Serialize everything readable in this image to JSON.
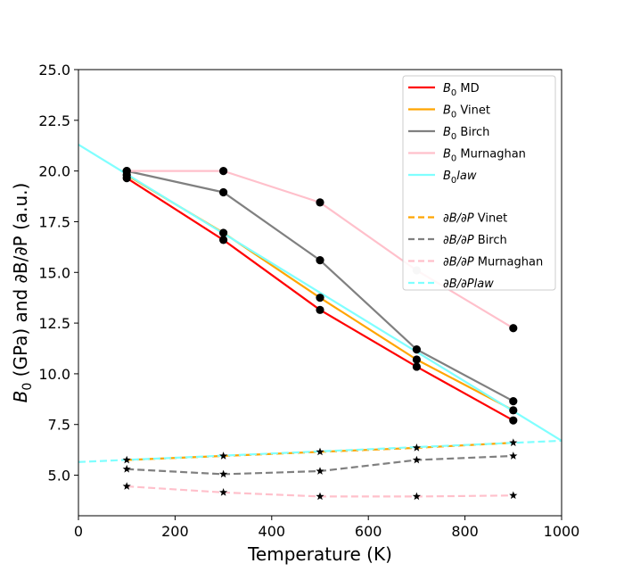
{
  "chart_data": {
    "type": "line",
    "xlabel": "Temperature (K)",
    "ylabel_parts": [
      "B",
      "0",
      " (GPa) and ∂B/∂P (a.u.)"
    ],
    "xlim": [
      0,
      1000
    ],
    "ylim": [
      3.0,
      25.0
    ],
    "xticks": [
      0,
      200,
      400,
      600,
      800,
      1000
    ],
    "yticks": [
      5.0,
      7.5,
      10.0,
      12.5,
      15.0,
      17.5,
      20.0,
      22.5,
      25.0
    ],
    "xtick_labels": [
      "0",
      "200",
      "400",
      "600",
      "800",
      "1000"
    ],
    "ytick_labels": [
      "5.0",
      "7.5",
      "10.0",
      "12.5",
      "15.0",
      "17.5",
      "20.0",
      "22.5",
      "25.0"
    ],
    "grid": false,
    "legend_position": "top-right",
    "series": [
      {
        "key": "b0-md",
        "name": "MD",
        "name_prefix": "B",
        "name_sub": "0",
        "color": "#ff0000",
        "dash": "solid",
        "x": [
          100,
          300,
          500,
          700,
          900
        ],
        "values": [
          19.65,
          16.6,
          13.15,
          10.35,
          7.7
        ]
      },
      {
        "key": "b0-vinet",
        "name": "Vinet",
        "name_prefix": "B",
        "name_sub": "0",
        "color": "#ffa500",
        "dash": "solid",
        "x": [
          100,
          300,
          500,
          700,
          900
        ],
        "values": [
          19.8,
          16.95,
          13.75,
          10.7,
          8.2
        ]
      },
      {
        "key": "b0-birch",
        "name": "Birch",
        "name_prefix": "B",
        "name_sub": "0",
        "color": "#808080",
        "dash": "solid",
        "x": [
          100,
          300,
          500,
          700,
          900
        ],
        "values": [
          20.0,
          18.95,
          15.6,
          11.2,
          8.65
        ]
      },
      {
        "key": "b0-murnaghan",
        "name": "Murnaghan",
        "name_prefix": "B",
        "name_sub": "0",
        "color": "#ffc0cb",
        "dash": "solid",
        "x": [
          100,
          300,
          500,
          700,
          900
        ],
        "values": [
          20.0,
          20.0,
          18.45,
          15.1,
          12.25
        ]
      },
      {
        "key": "b0-law",
        "name": "law",
        "name_prefix": "B",
        "name_sub": "0",
        "color": "#80ffff",
        "dash": "solid",
        "x": [
          0,
          1000
        ],
        "values": [
          21.3,
          6.7
        ]
      },
      {
        "key": "dbdp-vinet",
        "name": "Vinet",
        "name_prefix": "∂B/∂P",
        "name_sub": "",
        "color": "#ffa500",
        "dash": "dashed",
        "x": [
          100,
          300,
          500,
          700,
          900
        ],
        "values": [
          5.75,
          5.95,
          6.15,
          6.35,
          6.6
        ]
      },
      {
        "key": "dbdp-birch",
        "name": "Birch",
        "name_prefix": "∂B/∂P",
        "name_sub": "",
        "color": "#808080",
        "dash": "dashed",
        "x": [
          100,
          300,
          500,
          700,
          900
        ],
        "values": [
          5.3,
          5.05,
          5.2,
          5.75,
          5.95
        ]
      },
      {
        "key": "dbdp-murnaghan",
        "name": "Murnaghan",
        "name_prefix": "∂B/∂P",
        "name_sub": "",
        "color": "#ffc0cb",
        "dash": "dashed",
        "x": [
          100,
          300,
          500,
          700,
          900
        ],
        "values": [
          4.45,
          4.15,
          3.95,
          3.95,
          4.0
        ]
      },
      {
        "key": "dbdp-law",
        "name": "law",
        "name_prefix": "∂B/∂P",
        "name_sub": "",
        "color": "#80ffff",
        "dash": "dashed",
        "x": [
          0,
          1000
        ],
        "values": [
          5.65,
          6.7
        ]
      }
    ],
    "markers": [
      {
        "key": "md-points",
        "shape": "circle",
        "color": "#000000",
        "x": [
          100,
          300,
          500,
          700,
          900
        ],
        "values": [
          19.65,
          16.6,
          13.15,
          10.35,
          7.7
        ]
      },
      {
        "key": "vinet-points",
        "shape": "circle",
        "color": "#000000",
        "x": [
          100,
          300,
          500,
          700,
          900
        ],
        "values": [
          19.8,
          16.95,
          13.75,
          10.7,
          8.2
        ]
      },
      {
        "key": "birch-points",
        "shape": "circle",
        "color": "#000000",
        "x": [
          100,
          300,
          500,
          700,
          900
        ],
        "values": [
          20.0,
          18.95,
          15.6,
          11.2,
          8.65
        ]
      },
      {
        "key": "murnaghan-points",
        "shape": "circle",
        "color": "#000000",
        "x": [
          100,
          300,
          500,
          900
        ],
        "values": [
          20.0,
          20.0,
          18.45,
          12.25
        ]
      },
      {
        "key": "murnaghan-point-700",
        "shape": "circle",
        "color": "#c8c8c8",
        "x": [
          700
        ],
        "values": [
          15.1
        ]
      },
      {
        "key": "dbdp-vinet-points",
        "shape": "star",
        "color": "#000000",
        "x": [
          100,
          300,
          500,
          700,
          900
        ],
        "values": [
          5.75,
          5.95,
          6.15,
          6.35,
          6.6
        ]
      },
      {
        "key": "dbdp-birch-points",
        "shape": "star",
        "color": "#000000",
        "x": [
          100,
          300,
          500,
          700,
          900
        ],
        "values": [
          5.3,
          5.05,
          5.2,
          5.75,
          5.95
        ]
      },
      {
        "key": "dbdp-murnaghan-points",
        "shape": "star",
        "color": "#000000",
        "x": [
          100,
          300,
          500,
          700,
          900
        ],
        "values": [
          4.45,
          4.15,
          3.95,
          3.95,
          4.0
        ]
      }
    ],
    "legend_groups": [
      [
        "b0-md",
        "b0-vinet",
        "b0-birch",
        "b0-murnaghan",
        "b0-law"
      ],
      [
        "dbdp-vinet",
        "dbdp-birch",
        "dbdp-murnaghan",
        "dbdp-law"
      ]
    ]
  }
}
